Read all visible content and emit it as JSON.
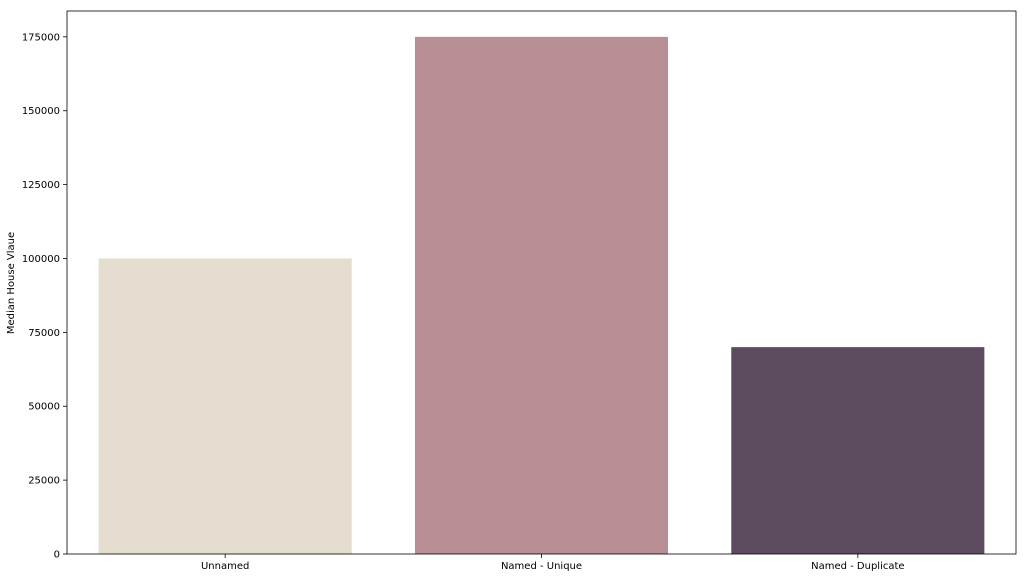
{
  "chart_data": {
    "type": "bar",
    "title": "",
    "xlabel": "",
    "ylabel": "Median House Vlaue",
    "categories": [
      "Unnamed",
      "Named - Unique",
      "Named - Duplicate"
    ],
    "values": [
      100000,
      175000,
      70000
    ],
    "colors": [
      "#e5ddd0",
      "#b88e95",
      "#5c4b5e"
    ],
    "ylim": [
      0,
      183750
    ],
    "yticks": [
      0,
      25000,
      50000,
      75000,
      100000,
      125000,
      150000,
      175000
    ],
    "ytick_labels": [
      "0",
      "25000",
      "50000",
      "75000",
      "100000",
      "125000",
      "150000",
      "175000"
    ],
    "grid": false,
    "legend": "none"
  }
}
